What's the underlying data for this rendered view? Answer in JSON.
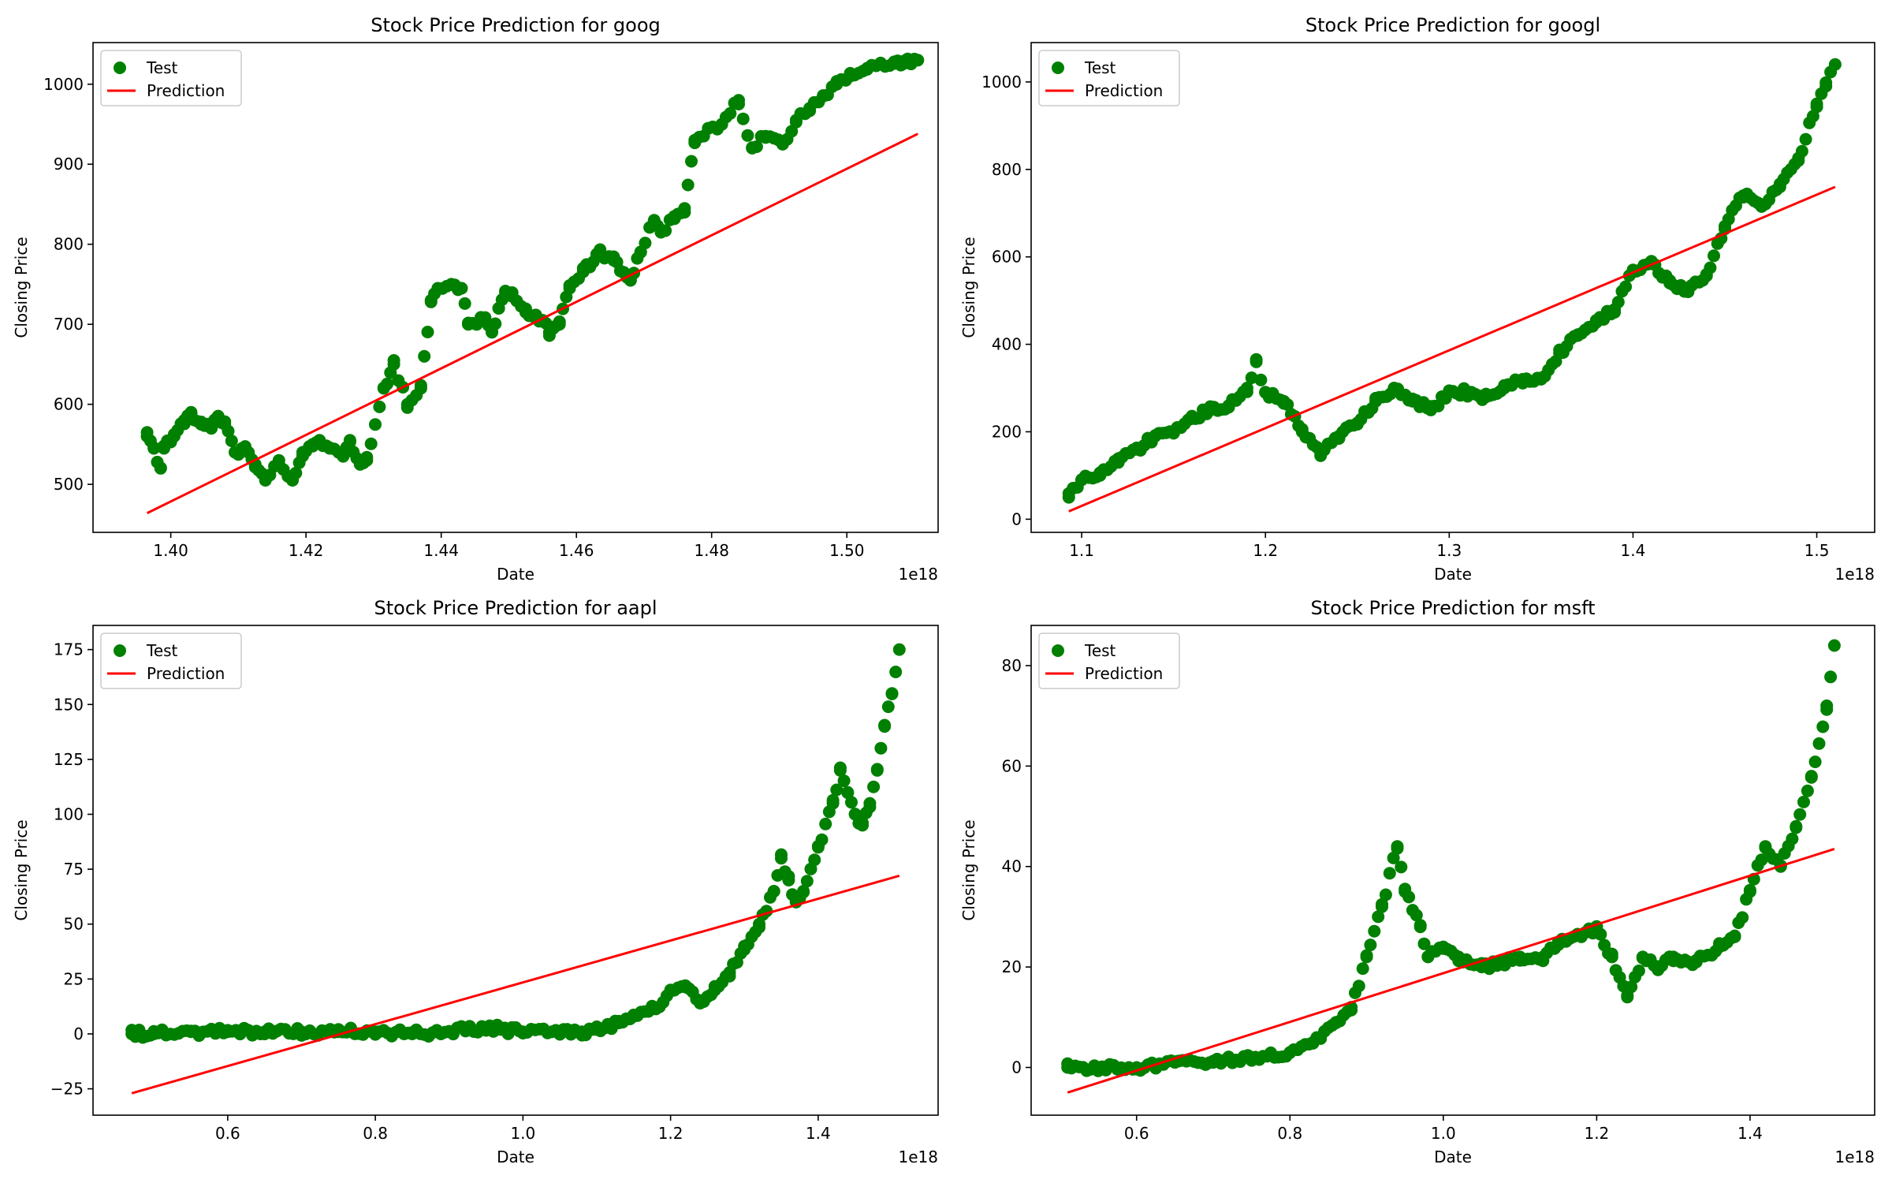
{
  "chart_data": [
    {
      "type": "scatter",
      "title": "Stock Price Prediction for goog",
      "xlabel": "Date",
      "ylabel": "Closing Price",
      "x_offset_label": "1e18",
      "xlim": [
        1.3885,
        1.5135
      ],
      "ylim": [
        440,
        1052
      ],
      "xticks": [
        1.4,
        1.42,
        1.44,
        1.46,
        1.48,
        1.5
      ],
      "xtick_labels": [
        "1.40",
        "1.42",
        "1.44",
        "1.46",
        "1.48",
        "1.50"
      ],
      "yticks": [
        500,
        600,
        700,
        800,
        900,
        1000
      ],
      "ytick_labels": [
        "500",
        "600",
        "700",
        "800",
        "900",
        "1000"
      ],
      "legend": {
        "location": "upper left",
        "entries": [
          "Test",
          "Prediction"
        ]
      },
      "series": [
        {
          "name": "Test",
          "kind": "scatter",
          "color": "#008000",
          "x": [
            1.3965,
            1.3975,
            1.3985,
            1.399,
            1.4005,
            1.402,
            1.403,
            1.4045,
            1.406,
            1.407,
            1.408,
            1.4095,
            1.411,
            1.4125,
            1.414,
            1.416,
            1.418,
            1.4195,
            1.421,
            1.422,
            1.4235,
            1.4255,
            1.4265,
            1.428,
            1.429,
            1.4315,
            1.433,
            1.435,
            1.437,
            1.4385,
            1.4395,
            1.4415,
            1.443,
            1.444,
            1.4465,
            1.4475,
            1.4485,
            1.4495,
            1.4505,
            1.4525,
            1.4535,
            1.455,
            1.456,
            1.4575,
            1.459,
            1.461,
            1.462,
            1.4635,
            1.4655,
            1.467,
            1.468,
            1.4695,
            1.4715,
            1.4725,
            1.4745,
            1.476,
            1.4775,
            1.4795,
            1.4815,
            1.484,
            1.486,
            1.488,
            1.4905,
            1.4925,
            1.4945,
            1.4965,
            1.4985,
            1.5005,
            1.503,
            1.505,
            1.507,
            1.5085,
            1.5095,
            1.5105
          ],
          "y": [
            560,
            545,
            520,
            545,
            560,
            580,
            590,
            575,
            570,
            585,
            575,
            540,
            545,
            525,
            505,
            530,
            505,
            540,
            550,
            555,
            545,
            535,
            555,
            525,
            530,
            620,
            650,
            600,
            620,
            730,
            745,
            750,
            745,
            700,
            705,
            690,
            720,
            740,
            735,
            715,
            710,
            705,
            690,
            700,
            745,
            770,
            775,
            790,
            780,
            765,
            755,
            790,
            830,
            815,
            835,
            840,
            930,
            945,
            950,
            980,
            920,
            935,
            925,
            955,
            970,
            985,
            1000,
            1010,
            1020,
            1025,
            1028,
            1029,
            1027,
            1030
          ],
          "size_hint": 1
        },
        {
          "name": "Prediction",
          "kind": "line",
          "color": "#ff0000",
          "x": [
            1.3965,
            1.5105
          ],
          "y": [
            464,
            938
          ]
        }
      ]
    },
    {
      "type": "scatter",
      "title": "Stock Price Prediction for googl",
      "xlabel": "Date",
      "ylabel": "Closing Price",
      "x_offset_label": "1e18",
      "xlim": [
        1.0725,
        1.5315
      ],
      "ylim": [
        -30,
        1090
      ],
      "xticks": [
        1.1,
        1.2,
        1.3,
        1.4,
        1.5
      ],
      "xtick_labels": [
        "1.1",
        "1.2",
        "1.3",
        "1.4",
        "1.5"
      ],
      "yticks": [
        0,
        200,
        400,
        600,
        800,
        1000
      ],
      "ytick_labels": [
        "0",
        "200",
        "400",
        "600",
        "800",
        "1000"
      ],
      "legend": {
        "location": "upper left",
        "entries": [
          "Test",
          "Prediction"
        ]
      },
      "series": [
        {
          "name": "Test",
          "kind": "scatter",
          "color": "#008000",
          "x": [
            1.093,
            1.1,
            1.11,
            1.12,
            1.13,
            1.14,
            1.15,
            1.16,
            1.17,
            1.18,
            1.19,
            1.195,
            1.2,
            1.21,
            1.22,
            1.23,
            1.24,
            1.25,
            1.26,
            1.27,
            1.28,
            1.29,
            1.3,
            1.31,
            1.32,
            1.33,
            1.34,
            1.35,
            1.36,
            1.37,
            1.38,
            1.39,
            1.4,
            1.41,
            1.42,
            1.43,
            1.44,
            1.45,
            1.46,
            1.47,
            1.48,
            1.49,
            1.5,
            1.505,
            1.51
          ],
          "y": [
            50,
            90,
            100,
            130,
            160,
            190,
            200,
            230,
            250,
            260,
            300,
            360,
            290,
            270,
            200,
            150,
            190,
            220,
            270,
            300,
            270,
            250,
            290,
            290,
            280,
            300,
            320,
            320,
            380,
            420,
            450,
            480,
            570,
            590,
            540,
            520,
            560,
            670,
            740,
            720,
            760,
            820,
            950,
            990,
            1040
          ],
          "size_hint": 1
        },
        {
          "name": "Prediction",
          "kind": "line",
          "color": "#ff0000",
          "x": [
            1.093,
            1.51
          ],
          "y": [
            18,
            760
          ]
        }
      ]
    },
    {
      "type": "scatter",
      "title": "Stock Price Prediction for aapl",
      "xlabel": "Date",
      "ylabel": "Closing Price",
      "x_offset_label": "1e18",
      "xlim": [
        0.4175,
        1.5625
      ],
      "ylim": [
        -37,
        186
      ],
      "xticks": [
        0.6,
        0.8,
        1.0,
        1.2,
        1.4
      ],
      "xtick_labels": [
        "0.6",
        "0.8",
        "1.0",
        "1.2",
        "1.4"
      ],
      "yticks": [
        -25,
        0,
        25,
        50,
        75,
        100,
        125,
        150,
        175
      ],
      "ytick_labels": [
        "−25",
        "0",
        "25",
        "50",
        "75",
        "100",
        "125",
        "150",
        "175"
      ],
      "legend": {
        "location": "upper left",
        "entries": [
          "Test",
          "Prediction"
        ]
      },
      "series": [
        {
          "name": "Test",
          "kind": "scatter",
          "color": "#008000",
          "x": [
            0.47,
            0.5,
            0.55,
            0.6,
            0.65,
            0.7,
            0.75,
            0.8,
            0.85,
            0.9,
            0.95,
            0.97,
            1.0,
            1.05,
            1.08,
            1.1,
            1.13,
            1.15,
            1.18,
            1.2,
            1.22,
            1.24,
            1.26,
            1.28,
            1.3,
            1.32,
            1.34,
            1.35,
            1.36,
            1.37,
            1.38,
            1.4,
            1.42,
            1.43,
            1.44,
            1.45,
            1.46,
            1.47,
            1.48,
            1.49,
            1.5,
            1.51
          ],
          "y": [
            0,
            0,
            1,
            1,
            1,
            1,
            1,
            1,
            0,
            1,
            3,
            2,
            1,
            1,
            1,
            2,
            5,
            8,
            12,
            20,
            22,
            14,
            20,
            28,
            40,
            50,
            65,
            80,
            70,
            60,
            65,
            85,
            105,
            120,
            110,
            100,
            95,
            105,
            120,
            140,
            155,
            175
          ],
          "size_hint": 1
        },
        {
          "name": "Prediction",
          "kind": "line",
          "color": "#ff0000",
          "x": [
            0.47,
            1.51
          ],
          "y": [
            -27,
            72
          ]
        }
      ]
    },
    {
      "type": "scatter",
      "title": "Stock Price Prediction for msft",
      "xlabel": "Date",
      "ylabel": "Closing Price",
      "x_offset_label": "1e18",
      "xlim": [
        0.4625,
        1.5625
      ],
      "ylim": [
        -9.5,
        88
      ],
      "xticks": [
        0.6,
        0.8,
        1.0,
        1.2,
        1.4
      ],
      "xtick_labels": [
        "0.6",
        "0.8",
        "1.0",
        "1.2",
        "1.4"
      ],
      "yticks": [
        0,
        20,
        40,
        60,
        80
      ],
      "ytick_labels": [
        "0",
        "20",
        "40",
        "60",
        "80"
      ],
      "legend": {
        "location": "upper left",
        "entries": [
          "Test",
          "Prediction"
        ]
      },
      "series": [
        {
          "name": "Test",
          "kind": "scatter",
          "color": "#008000",
          "x": [
            0.51,
            0.55,
            0.6,
            0.65,
            0.7,
            0.75,
            0.8,
            0.83,
            0.86,
            0.88,
            0.9,
            0.92,
            0.94,
            0.95,
            0.97,
            0.98,
            1.0,
            1.02,
            1.05,
            1.08,
            1.1,
            1.13,
            1.15,
            1.18,
            1.2,
            1.22,
            1.24,
            1.26,
            1.28,
            1.3,
            1.33,
            1.36,
            1.38,
            1.4,
            1.42,
            1.44,
            1.46,
            1.48,
            1.5,
            1.51
          ],
          "y": [
            0,
            0,
            0,
            1,
            1,
            2,
            3,
            5,
            9,
            12,
            22,
            32,
            44,
            35,
            28,
            22,
            24,
            22,
            20,
            21,
            22,
            22,
            25,
            26,
            28,
            22,
            14,
            22,
            20,
            22,
            21,
            24,
            26,
            35,
            44,
            40,
            48,
            58,
            72,
            84
          ],
          "size_hint": 1
        },
        {
          "name": "Prediction",
          "kind": "line",
          "color": "#ff0000",
          "x": [
            0.51,
            1.51
          ],
          "y": [
            -5,
            43.5
          ]
        }
      ]
    }
  ]
}
